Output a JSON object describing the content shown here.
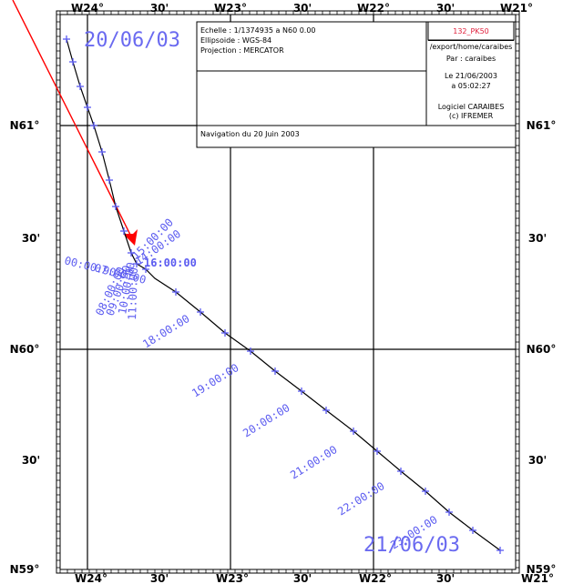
{
  "axes": {
    "top_labels": [
      "W24°",
      "30'",
      "W23°",
      "30'",
      "W22°",
      "30'",
      "W21°"
    ],
    "bottom_labels": [
      "W24°",
      "30'",
      "W23°",
      "30'",
      "W22°",
      "30'",
      "W21°"
    ],
    "left_labels": [
      "N61°",
      "30'",
      "N60°",
      "30'",
      "N59°"
    ],
    "right_labels": [
      "N61°",
      "30'",
      "N60°",
      "30'",
      "N59°"
    ]
  },
  "info_box": {
    "echelle": "Echelle : 1/1374935 a N60 0.00",
    "ellipsoide": "Ellipsoide : WGS-84",
    "projection": "Projection : MERCATOR",
    "navigation": "Navigation du 20 Juin 2003",
    "file_id": "132_PK50",
    "export_path": "/export/home/caraibes",
    "par": "Par : caraibes",
    "date": "Le 21/06/2003",
    "time": "a 05:02:27",
    "logiciel": "Logiciel CARAIBES",
    "ifremer": "(c) IFREMER"
  },
  "track": {
    "start_label": "20/06/03",
    "end_label": "21/06/03",
    "colors": {
      "track": "#000000",
      "markers": "#5b5bf0",
      "arrow": "#ff0000"
    },
    "time_labels_cluster": [
      "00:00:90",
      "07:00:00",
      "08:00:00",
      "09:00:00",
      "10:00:00",
      "11:00:00",
      "12:00:00",
      "13:00:00",
      "14:00:00",
      "15:00:00"
    ],
    "time_labels_main": [
      "16:00:00",
      "18:00:00",
      "19:00:00",
      "20:00:00",
      "21:00:00",
      "22:00:00",
      "23:00:00"
    ]
  }
}
